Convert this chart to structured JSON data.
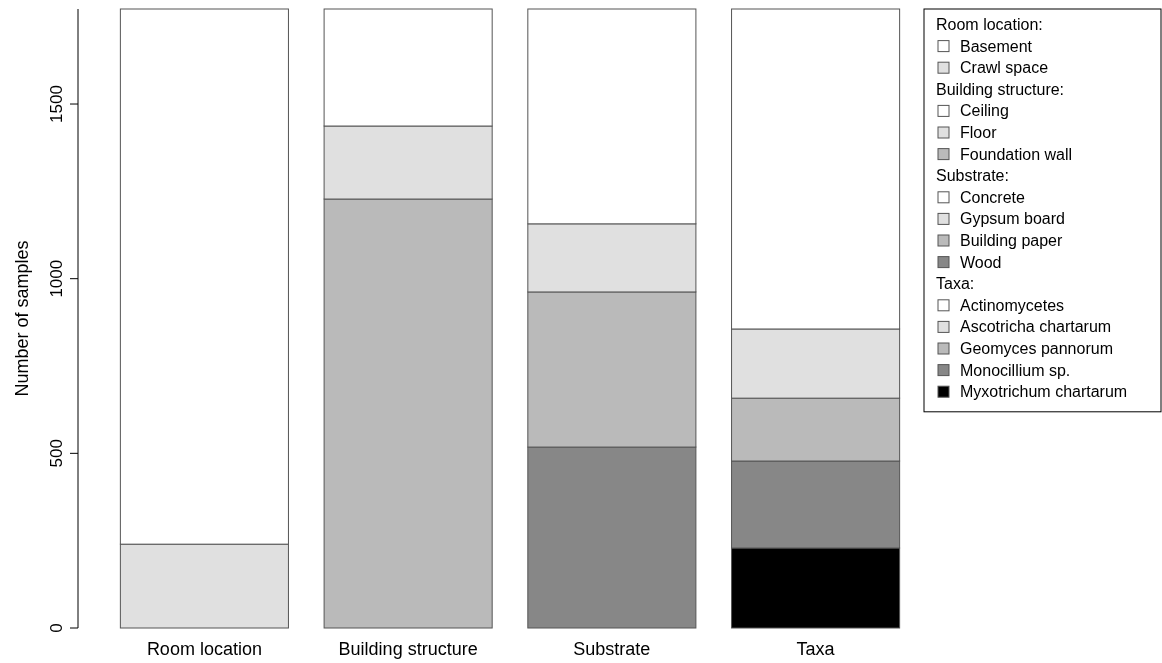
{
  "chart_data": {
    "type": "bar",
    "stacked": true,
    "ylabel": "Number of samples",
    "categories": [
      "Room location",
      "Building structure",
      "Substrate",
      "Taxa"
    ],
    "ylim": [
      0,
      1772
    ],
    "yticks": [
      0,
      500,
      1000,
      1500
    ],
    "legend": "right",
    "grid": false,
    "annotations": [
      "Room location:",
      "Building structure:",
      "Substrate:",
      "Taxa:"
    ],
    "series": [
      {
        "name": "Crawl space",
        "color": "#e0e0e0",
        "values": [
          240,
          null,
          null,
          null
        ]
      },
      {
        "name": "Basement",
        "color": "#ffffff",
        "values": [
          1532,
          null,
          null,
          null
        ]
      },
      {
        "name": "Foundation wall",
        "color": "#bababa",
        "values": [
          null,
          1228,
          null,
          null
        ]
      },
      {
        "name": "Floor",
        "color": "#e0e0e0",
        "values": [
          null,
          209,
          null,
          null
        ]
      },
      {
        "name": "Ceiling",
        "color": "#ffffff",
        "values": [
          null,
          335,
          null,
          null
        ]
      },
      {
        "name": "Wood",
        "color": "#878787",
        "values": [
          null,
          null,
          518,
          null
        ]
      },
      {
        "name": "Building paper",
        "color": "#bababa",
        "values": [
          null,
          null,
          444,
          null
        ]
      },
      {
        "name": "Gypsum board",
        "color": "#e0e0e0",
        "values": [
          null,
          null,
          195,
          null
        ]
      },
      {
        "name": "Concrete",
        "color": "#ffffff",
        "values": [
          null,
          null,
          615,
          null
        ]
      },
      {
        "name": "Myxotrichum chartarum",
        "color": "#000000",
        "values": [
          null,
          null,
          null,
          229
        ]
      },
      {
        "name": "Monocillium sp.",
        "color": "#878787",
        "values": [
          null,
          null,
          null,
          249
        ]
      },
      {
        "name": "Geomyces pannorum",
        "color": "#bababa",
        "values": [
          null,
          null,
          null,
          180
        ]
      },
      {
        "name": "Ascotricha chartarum",
        "color": "#e0e0e0",
        "values": [
          null,
          null,
          null,
          198
        ]
      },
      {
        "name": "Actinomycetes",
        "color": "#ffffff",
        "values": [
          null,
          null,
          null,
          916
        ]
      }
    ]
  }
}
